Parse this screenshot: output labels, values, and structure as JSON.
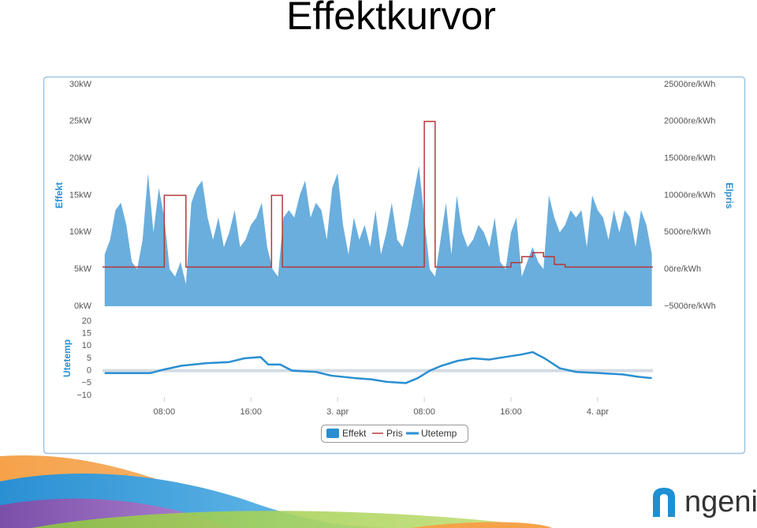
{
  "title": "Effektkurvor",
  "logo": "ngenic",
  "chart_data": [
    {
      "type": "area",
      "ylabel": "Effekt",
      "y2label": "Elpris",
      "xlim": [
        2.3,
        53.1
      ],
      "ylim": [
        0,
        30
      ],
      "yticks": [
        {
          "value": 0,
          "label": "0kW"
        },
        {
          "value": 5,
          "label": "5kW"
        },
        {
          "value": 10,
          "label": "10kW"
        },
        {
          "value": 15,
          "label": "15kW"
        },
        {
          "value": 20,
          "label": "20kW"
        },
        {
          "value": 25,
          "label": "25kW"
        },
        {
          "value": 30,
          "label": "30kW"
        }
      ],
      "y2lim": [
        -500,
        2500
      ],
      "y2ticks": [
        {
          "value": -500,
          "label": "−500öre/kWh"
        },
        {
          "value": 0,
          "label": "0öre/kWh"
        },
        {
          "value": 500,
          "label": "500öre/kWh"
        },
        {
          "value": 1000,
          "label": "1000öre/kWh"
        },
        {
          "value": 1500,
          "label": "1500öre/kWh"
        },
        {
          "value": 2000,
          "label": "2000öre/kWh"
        },
        {
          "value": 2500,
          "label": "2500öre/kWh"
        }
      ],
      "series": [
        {
          "name": "Effekt",
          "color": "#6aaedd",
          "x": [
            2.5,
            3,
            3.5,
            4,
            4.5,
            5,
            5.5,
            6,
            6.5,
            7,
            7.5,
            8,
            8.5,
            9,
            9.5,
            10,
            10.5,
            11,
            11.5,
            12,
            12.5,
            13,
            13.5,
            14,
            14.5,
            15,
            15.5,
            16,
            16.5,
            17,
            17.5,
            18,
            18.5,
            19,
            19.5,
            20,
            20.5,
            21,
            21.5,
            22,
            22.5,
            23,
            23.5,
            24,
            24.5,
            25,
            25.5,
            26,
            26.5,
            27,
            27.5,
            28,
            28.5,
            29,
            29.5,
            30,
            30.5,
            31,
            31.5,
            32,
            32.5,
            33,
            33.5,
            34,
            34.5,
            35,
            35.5,
            36,
            36.5,
            37,
            37.5,
            38,
            38.5,
            39,
            39.5,
            40,
            40.5,
            41,
            41.5,
            42,
            42.5,
            43,
            43.5,
            44,
            44.5,
            45,
            45.5,
            46,
            46.5,
            47,
            47.5,
            48,
            48.5,
            49,
            49.5,
            50,
            50.5,
            51,
            51.5,
            52,
            52.5,
            53
          ],
          "values": [
            7,
            9,
            13,
            14,
            11,
            6,
            5,
            9,
            18,
            10,
            16,
            12,
            5,
            4,
            6,
            3,
            14,
            16,
            17,
            12,
            9,
            12,
            8,
            10,
            13,
            8,
            9,
            11,
            12,
            14,
            8,
            5,
            4,
            12,
            13,
            12,
            15,
            17,
            12,
            14,
            13,
            9,
            16,
            18,
            11,
            7,
            12,
            9,
            11,
            8,
            13,
            7,
            10,
            14,
            9,
            8,
            11,
            15,
            19,
            12,
            5,
            4,
            9,
            14,
            7,
            15,
            10,
            8,
            9,
            11,
            10,
            8,
            12,
            6,
            5,
            10,
            12,
            4,
            6,
            8,
            6,
            5,
            15,
            12,
            10,
            11,
            13,
            12,
            13,
            8,
            15,
            13,
            12,
            9,
            13,
            10,
            13,
            12,
            8,
            13,
            11,
            7
          ]
        },
        {
          "name": "Pris",
          "color": "#b5393a",
          "axis": "y2",
          "step": true,
          "x": [
            2.3,
            8,
            10,
            17.9,
            18.9,
            32,
            33,
            40,
            41,
            42,
            43,
            44,
            45,
            53.1
          ],
          "values": [
            30,
            1000,
            30,
            1000,
            30,
            2000,
            30,
            90,
            170,
            225,
            170,
            65,
            30,
            30
          ]
        }
      ]
    },
    {
      "type": "line",
      "ylabel": "Utetemp",
      "xlim": [
        2.3,
        53.1
      ],
      "xticks": [
        {
          "value": 8,
          "label": "08:00"
        },
        {
          "value": 16,
          "label": "16:00"
        },
        {
          "value": 24,
          "label": "3. apr"
        },
        {
          "value": 32,
          "label": "08:00"
        },
        {
          "value": 40,
          "label": "16:00"
        },
        {
          "value": 48,
          "label": "4. apr"
        }
      ],
      "ylim": [
        -10,
        20
      ],
      "yticks": [
        {
          "value": -10,
          "label": "−10"
        },
        {
          "value": -5,
          "label": "−5"
        },
        0,
        5,
        10,
        15,
        20
      ],
      "series": [
        {
          "name": "Utetemp",
          "color": "#2a8fd2",
          "x": [
            2.5,
            4.5,
            6.7,
            8,
            9.6,
            11.8,
            14,
            15.4,
            16.9,
            17.6,
            18.7,
            19.8,
            22,
            23.4,
            25.6,
            27.1,
            28.5,
            30.3,
            31.4,
            32.5,
            33.6,
            35.1,
            36.5,
            38,
            39.4,
            40.9,
            42,
            43.1,
            44.5,
            46,
            48.2,
            50.3,
            51.8,
            53
          ],
          "values": [
            -1,
            -1,
            -1,
            0.5,
            2,
            3,
            3.5,
            5,
            5.5,
            2.5,
            2.5,
            0,
            -0.5,
            -2,
            -3,
            -3.5,
            -4.5,
            -5,
            -3,
            0,
            2,
            4,
            5,
            4.5,
            5.5,
            6.5,
            7.5,
            5,
            1,
            -0.5,
            -1,
            -1.5,
            -2.5,
            -3
          ]
        }
      ]
    }
  ]
}
